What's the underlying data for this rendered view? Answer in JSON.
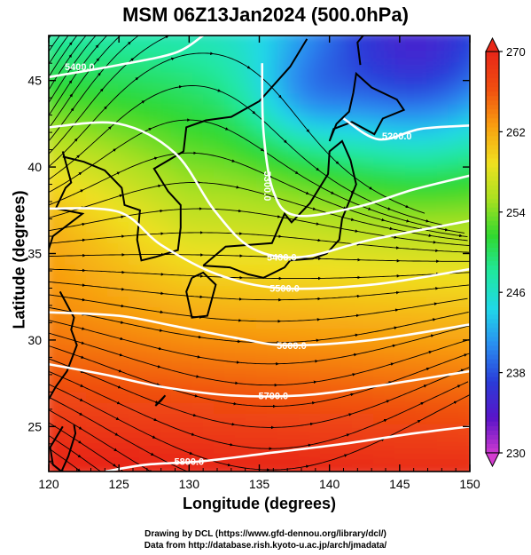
{
  "chart_data": {
    "type": "heatmap",
    "title": "MSM 06Z13Jan2024 (500.0hPa)",
    "xlabel": "Longitude (degrees)",
    "ylabel": "Latitude  (degrees)",
    "xlim": [
      120,
      150
    ],
    "ylim": [
      22.4,
      47.6
    ],
    "xticks": [
      120,
      125,
      130,
      135,
      140,
      145,
      150
    ],
    "yticks": [
      25,
      30,
      35,
      40,
      45
    ],
    "colorbar": {
      "range": [
        230,
        270
      ],
      "ticks": [
        230,
        238,
        246,
        254,
        262,
        270
      ],
      "colors": [
        "#d43cd0",
        "#5a14c8",
        "#2a3cd8",
        "#2a8cf0",
        "#20d8e8",
        "#20e8a0",
        "#30d830",
        "#a8e020",
        "#f0e020",
        "#f8a010",
        "#f05010",
        "#e82818"
      ]
    },
    "contours": [
      {
        "label": "5200.0",
        "path": [
          [
            141.0,
            42.8
          ],
          [
            143.5,
            41.6
          ],
          [
            146.5,
            42.2
          ],
          [
            150,
            42.4
          ]
        ]
      },
      {
        "label": "5300.0",
        "path": [
          [
            135.2,
            46.0
          ],
          [
            135.3,
            42.0
          ],
          [
            136.0,
            38.6
          ],
          [
            137.6,
            37.2
          ],
          [
            142.0,
            37.7
          ],
          [
            146.0,
            38.7
          ],
          [
            150,
            39.5
          ]
        ]
      },
      {
        "label": "5400.0",
        "path": [
          [
            120,
            45.2
          ],
          [
            125.0,
            45.9
          ],
          [
            129.0,
            46.6
          ],
          [
            131.0,
            47.6
          ]
        ]
      },
      {
        "label": "5400.0",
        "path": [
          [
            120,
            42.3
          ],
          [
            125.0,
            42.5
          ],
          [
            129.0,
            40.8
          ],
          [
            131.8,
            37.5
          ],
          [
            134.5,
            35.3
          ],
          [
            138.0,
            34.8
          ],
          [
            143.0,
            35.8
          ],
          [
            150,
            36.9
          ]
        ]
      },
      {
        "label": "5500.0",
        "path": [
          [
            120,
            37.6
          ],
          [
            125.0,
            37.4
          ],
          [
            128.0,
            35.5
          ],
          [
            132.0,
            33.8
          ],
          [
            136.5,
            33.0
          ],
          [
            143.0,
            33.2
          ],
          [
            150,
            34.1
          ]
        ]
      },
      {
        "label": "5600.0",
        "path": [
          [
            120,
            31.6
          ],
          [
            125.0,
            31.4
          ],
          [
            129.0,
            30.8
          ],
          [
            133.5,
            30.1
          ],
          [
            137.0,
            29.7
          ],
          [
            143.0,
            30.0
          ],
          [
            150,
            30.9
          ]
        ]
      },
      {
        "label": "5700.0",
        "path": [
          [
            120,
            28.6
          ],
          [
            124.0,
            28.0
          ],
          [
            128.0,
            27.3
          ],
          [
            133.0,
            26.8
          ],
          [
            138.0,
            26.8
          ],
          [
            143.0,
            27.3
          ],
          [
            150,
            28.2
          ]
        ]
      },
      {
        "label": "5800.0",
        "path": [
          [
            124.0,
            22.4
          ],
          [
            127.0,
            22.8
          ],
          [
            131.0,
            23.0
          ],
          [
            136.0,
            23.5
          ],
          [
            141.0,
            24.0
          ],
          [
            146.0,
            24.6
          ],
          [
            150,
            25.0
          ]
        ]
      }
    ],
    "contour_labels": [
      {
        "text": "5400.0",
        "x": 122.2,
        "y": 45.8
      },
      {
        "text": "5200.0",
        "x": 144.8,
        "y": 41.8
      },
      {
        "text": "5300.0",
        "x": 135.6,
        "y": 38.9
      },
      {
        "text": "5400.0",
        "x": 136.6,
        "y": 34.8
      },
      {
        "text": "5500.0",
        "x": 136.8,
        "y": 33.0
      },
      {
        "text": "5600.0",
        "x": 137.3,
        "y": 29.7
      },
      {
        "text": "5700.0",
        "x": 136.0,
        "y": 26.8
      },
      {
        "text": "5800.0",
        "x": 130.0,
        "y": 23.0
      }
    ]
  },
  "credits": {
    "line1": "Drawing by DCL (https://www.gfd-dennou.org/library/dcl/)",
    "line2": "Data from http://database.rish.kyoto-u.ac.jp/arch/jmadata/"
  }
}
